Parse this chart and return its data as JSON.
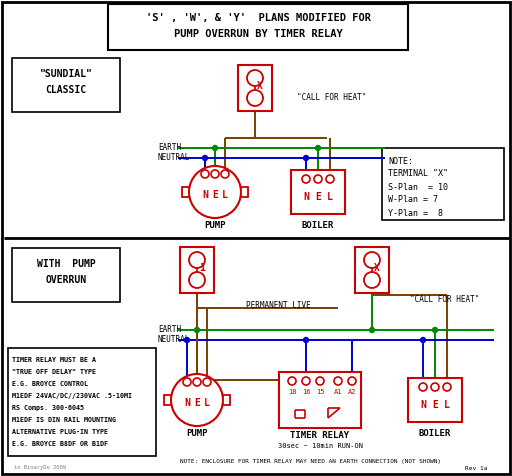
{
  "title_line1": "'S' , 'W', & 'Y'  PLANS MODIFIED FOR",
  "title_line2": "PUMP OVERRUN BY TIMER RELAY",
  "bg_color": "#ffffff",
  "border_color": "#000000",
  "red": "#cc0000",
  "green": "#008800",
  "blue": "#0000cc",
  "brown": "#7B3F00",
  "note_lines": [
    "NOTE:",
    "TERMINAL \"X\"",
    "S-Plan  = 10",
    "W-Plan = 7",
    "Y-Plan =  8"
  ],
  "timer_note_lines": [
    "TIMER RELAY MUST BE A",
    "\"TRUE OFF DELAY\" TYPE",
    "E.G. BROYCE CONTROL",
    "M1EDF 24VAC/DC//230VAC .5-10MI",
    "RS Comps. 300-6045",
    "M1EDF IS DIN RAIL MOUNTING",
    "ALTERNATIVE PLUG-IN TYPE",
    "E.G. BROYCE B8DF OR B1DF"
  ],
  "bottom_note": "NOTE: ENCLOSURE FOR TIMER RELAY MAY NEED AN EARTH CONNECTION (NOT SHOWN)",
  "run_on": "30sec ~ 10min RUN-ON",
  "watermark": "in BinaryDo 2009",
  "rev": "Rev 1a"
}
